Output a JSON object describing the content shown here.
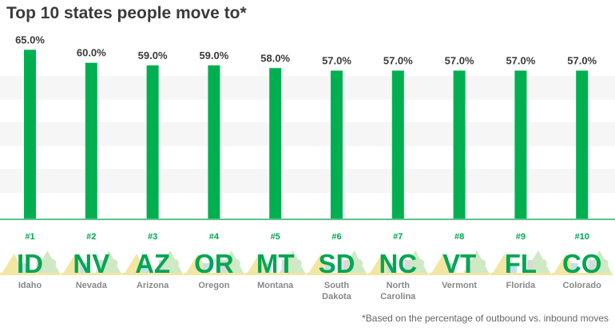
{
  "title": "Top 10 states people move to*",
  "footnote": "*Based on the percentage of outbound vs. inbound moves",
  "colors": {
    "bar": "#00b050",
    "accent": "#00a651",
    "baseline": "#5cc48a",
    "band": "#f6f6f6",
    "scene_yellow": "#f3e6a3",
    "scene_green": "#cfe9c4",
    "scene_blue": "#bfe1ef",
    "scene_gray": "#d9d9d9"
  },
  "chart_data": {
    "type": "bar",
    "title": "Top 10 states people move to*",
    "categories": [
      "Idaho",
      "Nevada",
      "Arizona",
      "Oregon",
      "Montana",
      "South Dakota",
      "North Carolina",
      "Vermont",
      "Florida",
      "Colorado"
    ],
    "ranks": [
      "#1",
      "#2",
      "#3",
      "#4",
      "#5",
      "#6",
      "#7",
      "#8",
      "#9",
      "#10"
    ],
    "abbreviations": [
      "ID",
      "NV",
      "AZ",
      "OR",
      "MT",
      "SD",
      "NC",
      "VT",
      "FL",
      "CO"
    ],
    "name_lines": [
      [
        "Idaho"
      ],
      [
        "Nevada"
      ],
      [
        "Arizona"
      ],
      [
        "Oregon"
      ],
      [
        "Montana"
      ],
      [
        "South",
        "Dakota"
      ],
      [
        "North",
        "Carolina"
      ],
      [
        "Vermont"
      ],
      [
        "Florida"
      ],
      [
        "Colorado"
      ]
    ],
    "values": [
      65.0,
      60.0,
      59.0,
      59.0,
      58.0,
      57.0,
      57.0,
      57.0,
      57.0,
      57.0
    ],
    "value_labels": [
      "65.0%",
      "60.0%",
      "59.0%",
      "59.0%",
      "58.0%",
      "57.0%",
      "57.0%",
      "57.0%",
      "57.0%",
      "57.0%"
    ],
    "ylim": [
      0,
      70
    ],
    "grid": true,
    "legend": "none"
  }
}
